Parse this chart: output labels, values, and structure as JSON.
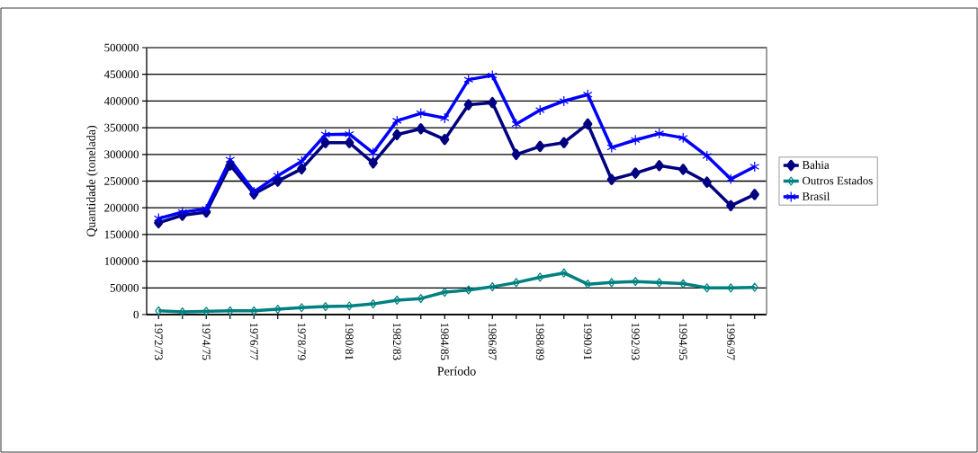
{
  "chart_data": {
    "type": "line",
    "xlabel": "Período",
    "ylabel": "Quantidade (tonelada)",
    "categories": [
      "1972/73",
      null,
      "1974/75",
      null,
      "1976/77",
      null,
      "1978/79",
      null,
      "1980/81",
      null,
      "1982/83",
      null,
      "1984/85",
      null,
      "1986/87",
      null,
      "1988/89",
      null,
      "1990/91",
      null,
      "1992/93",
      null,
      "1994/95",
      null,
      "1996/97",
      null
    ],
    "ylim": [
      0,
      500000
    ],
    "yticks": [
      0,
      50000,
      100000,
      150000,
      200000,
      250000,
      300000,
      350000,
      400000,
      450000,
      500000
    ],
    "grid": "y",
    "legend": "right",
    "series": [
      {
        "name": "Bahia",
        "color": "#000080",
        "marker": "diamond",
        "values": [
          172000,
          186000,
          192000,
          280000,
          226000,
          250000,
          273000,
          322000,
          322000,
          284000,
          337000,
          348000,
          328000,
          393000,
          397000,
          300000,
          315000,
          322000,
          357000,
          253000,
          265000,
          279000,
          272000,
          248000,
          204000,
          225000
        ]
      },
      {
        "name": "Outros Estados",
        "color": "#008080",
        "marker": "diamond-open",
        "values": [
          7000,
          5000,
          6000,
          7000,
          7000,
          10000,
          13000,
          15000,
          16000,
          20000,
          27000,
          30000,
          42000,
          46000,
          52000,
          60000,
          70000,
          78000,
          57000,
          60000,
          62000,
          60000,
          58000,
          50000,
          50000,
          51000
        ]
      },
      {
        "name": "Brasil",
        "color": "#0000ff",
        "marker": "cross",
        "values": [
          180000,
          192000,
          198000,
          290000,
          230000,
          260000,
          287000,
          337000,
          338000,
          303000,
          363000,
          377000,
          368000,
          440000,
          448000,
          357000,
          383000,
          400000,
          412000,
          313000,
          327000,
          339000,
          331000,
          297000,
          254000,
          277000
        ]
      }
    ]
  }
}
